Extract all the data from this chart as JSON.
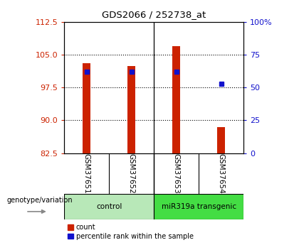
{
  "title": "GDS2066 / 252738_at",
  "samples": [
    "GSM37651",
    "GSM37652",
    "GSM37653",
    "GSM37654"
  ],
  "bar_bottom": 82.5,
  "bar_tops": [
    103.0,
    102.5,
    107.0,
    88.5
  ],
  "percentile_values": [
    62.0,
    62.0,
    62.0,
    53.0
  ],
  "ylim_left": [
    82.5,
    112.5
  ],
  "yticks_left": [
    82.5,
    90.0,
    97.5,
    105.0,
    112.5
  ],
  "ylim_right": [
    0,
    100
  ],
  "yticks_right": [
    0,
    25,
    50,
    75,
    100
  ],
  "ytick_labels_right": [
    "0",
    "25",
    "50",
    "75",
    "100%"
  ],
  "bar_color": "#cc2200",
  "percentile_color": "#1111cc",
  "bar_width": 0.18,
  "group_colors": [
    "#b8e8b8",
    "#44dd44"
  ],
  "group_labels": [
    "control",
    "miR319a transgenic"
  ],
  "legend_count_color": "#cc2200",
  "legend_percentile_color": "#1111cc",
  "xlabel": "genotype/variation",
  "background_color": "#ffffff",
  "plot_bg": "#ffffff",
  "left_tick_color": "#cc2200",
  "right_tick_color": "#1111cc",
  "sample_box_color": "#c8c8c8"
}
